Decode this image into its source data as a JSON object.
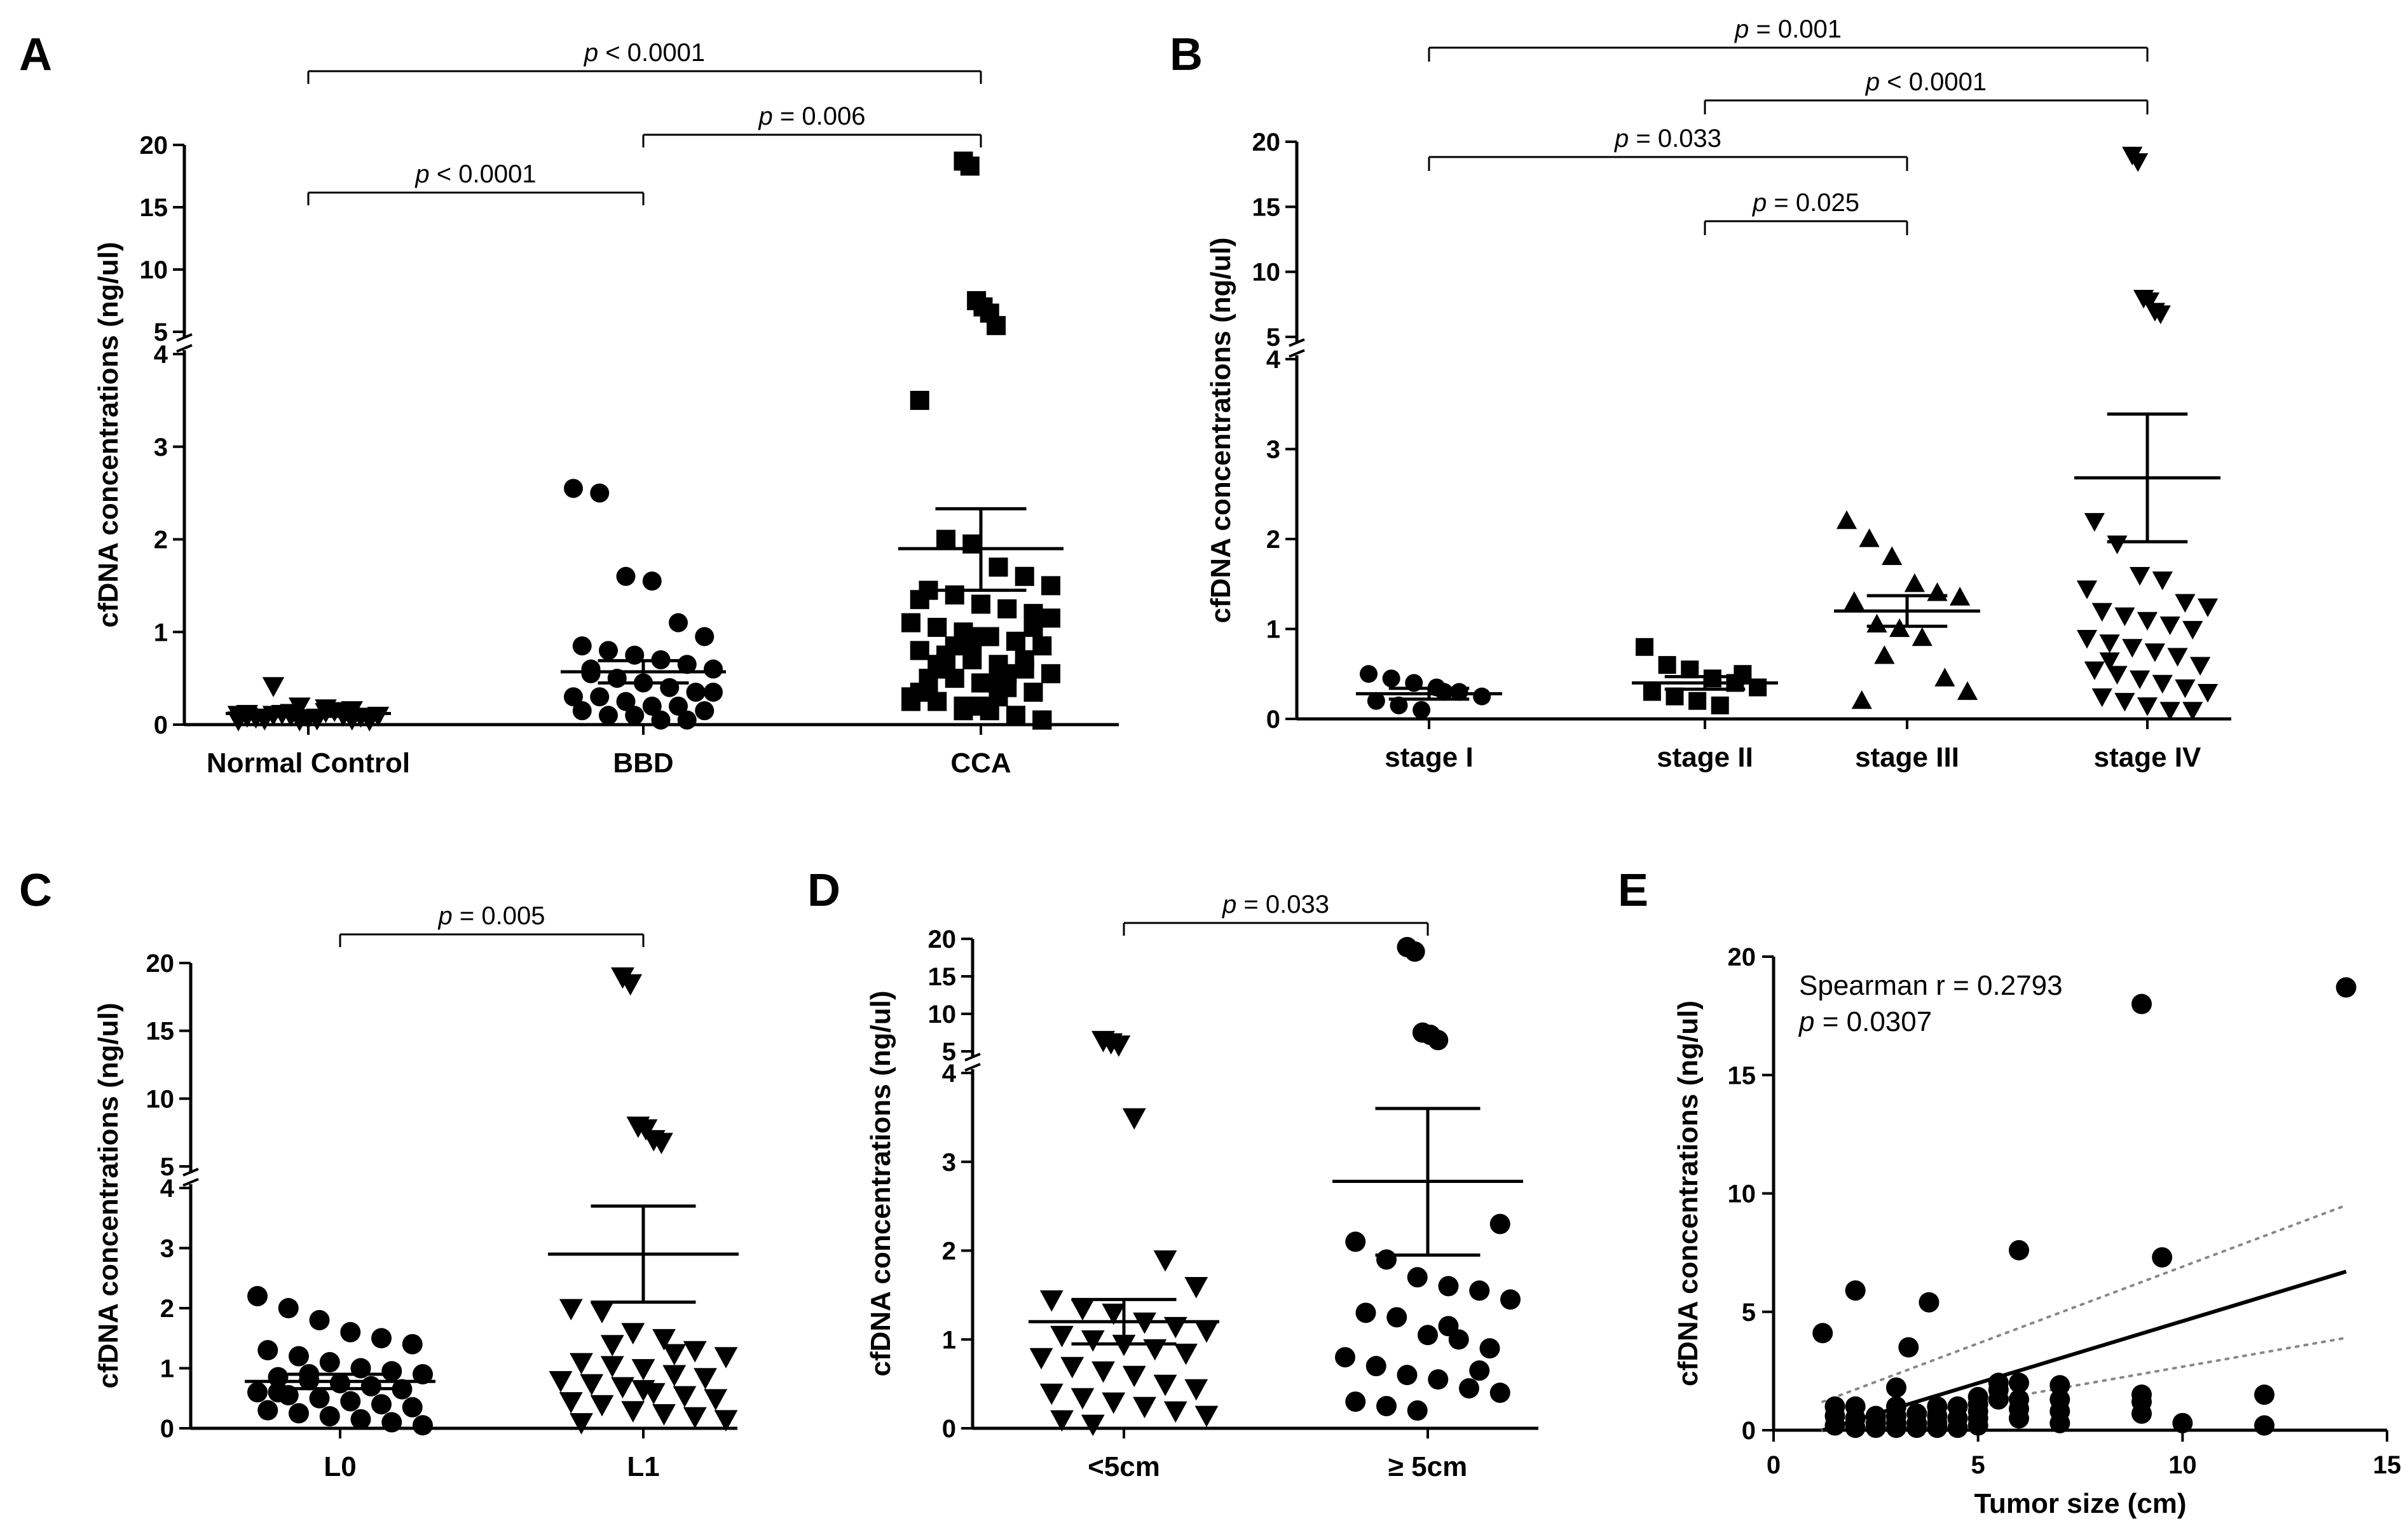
{
  "chart_data": [
    {
      "panel": "A",
      "type": "scatter",
      "ylabel": "cfDNA concentrations (ng/ul)",
      "ylim": [
        0,
        20
      ],
      "y_axis_break": [
        4,
        5
      ],
      "yticks_lower": [
        "0",
        "1",
        "2",
        "3",
        "4"
      ],
      "yticks_upper": [
        "5",
        "10",
        "15",
        "20"
      ],
      "categories": [
        "Normal Control",
        "BBD",
        "CCA"
      ],
      "series": [
        {
          "name": "Normal Control",
          "marker": "triangle-down",
          "mean": 0.12,
          "sem_low": 0.09,
          "sem_high": 0.15,
          "values": [
            0.05,
            0.08,
            0.1,
            0.06,
            0.12,
            0.07,
            0.09,
            0.11,
            0.05,
            0.14,
            0.06,
            0.1,
            0.08,
            0.12,
            0.07,
            0.15,
            0.09,
            0.11,
            0.06,
            0.13,
            0.08,
            0.1,
            0.05,
            0.12,
            0.42,
            0.2,
            0.18,
            0.16
          ]
        },
        {
          "name": "BBD",
          "marker": "circle",
          "mean": 0.57,
          "sem_low": 0.45,
          "sem_high": 0.69,
          "values": [
            2.55,
            2.5,
            1.6,
            1.55,
            1.1,
            0.95,
            0.85,
            0.8,
            0.75,
            0.7,
            0.65,
            0.6,
            0.55,
            0.5,
            0.45,
            0.4,
            0.35,
            0.3,
            0.3,
            0.25,
            0.2,
            0.2,
            0.15,
            0.15,
            0.1,
            0.1,
            0.05,
            0.05,
            0.35,
            0.6
          ]
        },
        {
          "name": "CCA",
          "marker": "square",
          "mean": 1.9,
          "sem_low": 1.45,
          "sem_high": 2.33,
          "values": [
            18.7,
            18.3,
            7.5,
            7.0,
            6.5,
            5.5,
            3.5,
            2.0,
            1.95,
            1.7,
            1.6,
            1.5,
            1.45,
            1.4,
            1.3,
            1.25,
            1.2,
            1.1,
            1.05,
            1.0,
            0.95,
            0.9,
            0.85,
            0.8,
            0.75,
            0.7,
            0.65,
            0.6,
            0.55,
            0.5,
            0.5,
            0.45,
            0.4,
            0.35,
            0.3,
            0.25,
            0.2,
            0.15,
            0.1,
            0.05,
            1.35,
            0.6,
            0.9,
            0.3,
            0.7,
            1.15,
            0.4,
            0.85,
            0.2,
            0.55,
            1.05,
            0.25,
            0.65,
            0.15,
            0.45,
            0.1,
            0.05,
            0.35,
            0.75,
            0.95
          ]
        }
      ],
      "comparisons": [
        {
          "groups": [
            "Normal Control",
            "BBD"
          ],
          "p_label": "p",
          "p_text": " < 0.0001"
        },
        {
          "groups": [
            "BBD",
            "CCA"
          ],
          "p_label": "p",
          "p_text": " = 0.006"
        },
        {
          "groups": [
            "Normal Control",
            "CCA"
          ],
          "p_label": "p",
          "p_text": " < 0.0001"
        }
      ]
    },
    {
      "panel": "B",
      "type": "scatter",
      "ylabel": "cfDNA concentrations (ng/ul)",
      "ylim": [
        0,
        20
      ],
      "y_axis_break": [
        4,
        5
      ],
      "yticks_lower": [
        "0",
        "1",
        "2",
        "3",
        "4"
      ],
      "yticks_upper": [
        "5",
        "10",
        "15",
        "20"
      ],
      "categories": [
        "stage I",
        "stage II",
        "stage III",
        "stage IV"
      ],
      "series": [
        {
          "name": "stage I",
          "marker": "circle",
          "mean": 0.28,
          "sem_low": 0.22,
          "sem_high": 0.34,
          "values": [
            0.5,
            0.45,
            0.4,
            0.35,
            0.3,
            0.25,
            0.2,
            0.15,
            0.1,
            0.3
          ]
        },
        {
          "name": "stage II",
          "marker": "square",
          "mean": 0.4,
          "sem_low": 0.33,
          "sem_high": 0.47,
          "values": [
            0.8,
            0.6,
            0.55,
            0.45,
            0.4,
            0.35,
            0.3,
            0.25,
            0.2,
            0.15,
            0.5
          ]
        },
        {
          "name": "stage III",
          "marker": "triangle-up",
          "mean": 1.2,
          "sem_low": 1.03,
          "sem_high": 1.37,
          "values": [
            2.2,
            2.0,
            1.8,
            1.5,
            1.4,
            1.35,
            1.3,
            1.05,
            1.0,
            0.9,
            0.45,
            0.3,
            0.2,
            0.7
          ]
        },
        {
          "name": "stage IV",
          "marker": "triangle-down",
          "mean": 2.68,
          "sem_low": 1.97,
          "sem_high": 3.39,
          "values": [
            19.0,
            18.5,
            8.0,
            7.8,
            7.0,
            6.8,
            2.2,
            1.95,
            1.6,
            1.55,
            1.3,
            1.25,
            1.2,
            1.15,
            1.1,
            1.05,
            1.0,
            0.9,
            0.85,
            0.8,
            0.75,
            0.7,
            0.6,
            0.55,
            0.5,
            0.45,
            0.4,
            0.35,
            0.3,
            0.25,
            0.2,
            0.15,
            0.1,
            0.1,
            1.45,
            0.65
          ]
        }
      ],
      "comparisons": [
        {
          "groups": [
            "stage II",
            "stage III"
          ],
          "p_label": "p",
          "p_text": " = 0.025"
        },
        {
          "groups": [
            "stage I",
            "stage III"
          ],
          "p_label": "p",
          "p_text": " = 0.033"
        },
        {
          "groups": [
            "stage II",
            "stage IV"
          ],
          "p_label": "p",
          "p_text": " < 0.0001"
        },
        {
          "groups": [
            "stage I",
            "stage IV"
          ],
          "p_label": "p",
          "p_text": " = 0.001"
        }
      ]
    },
    {
      "panel": "C",
      "type": "scatter",
      "ylabel": "cfDNA concentrations (ng/ul)",
      "ylim": [
        0,
        20
      ],
      "y_axis_break": [
        4,
        5
      ],
      "yticks_lower": [
        "0",
        "1",
        "2",
        "3",
        "4"
      ],
      "yticks_upper": [
        "5",
        "10",
        "15",
        "20"
      ],
      "categories": [
        "L0",
        "L1"
      ],
      "series": [
        {
          "name": "L0",
          "marker": "circle",
          "mean": 0.78,
          "sem_low": 0.66,
          "sem_high": 0.9,
          "values": [
            2.2,
            2.0,
            1.8,
            1.6,
            1.5,
            1.4,
            1.3,
            1.2,
            1.1,
            1.0,
            0.95,
            0.9,
            0.85,
            0.8,
            0.75,
            0.7,
            0.65,
            0.6,
            0.55,
            0.5,
            0.45,
            0.4,
            0.35,
            0.3,
            0.25,
            0.2,
            0.15,
            0.1,
            0.05,
            0.6,
            0.9
          ]
        },
        {
          "name": "L1",
          "marker": "triangle-down",
          "mean": 2.9,
          "sem_low": 2.1,
          "sem_high": 3.7,
          "values": [
            19.0,
            18.5,
            8.0,
            7.8,
            7.0,
            6.8,
            2.0,
            1.95,
            1.6,
            1.5,
            1.3,
            1.2,
            1.1,
            1.05,
            1.0,
            0.9,
            0.85,
            0.8,
            0.75,
            0.7,
            0.6,
            0.55,
            0.5,
            0.45,
            0.4,
            0.3,
            0.25,
            0.2,
            0.15,
            0.1,
            1.4,
            0.65,
            1.25
          ]
        }
      ],
      "comparisons": [
        {
          "groups": [
            "L0",
            "L1"
          ],
          "p_label": "p",
          "p_text": " = 0.005"
        }
      ]
    },
    {
      "panel": "D",
      "type": "scatter",
      "ylabel": "cfDNA concentrations (ng/ul)",
      "ylim": [
        0,
        20
      ],
      "y_axis_break": [
        4,
        5
      ],
      "yticks_lower": [
        "0",
        "1",
        "2",
        "3",
        "4"
      ],
      "yticks_upper": [
        "5",
        "10",
        "15",
        "20"
      ],
      "categories": [
        "<5cm",
        "≥ 5cm"
      ],
      "series": [
        {
          "name": "<5cm",
          "marker": "triangle-down",
          "mean": 1.2,
          "sem_low": 0.95,
          "sem_high": 1.45,
          "values": [
            6.5,
            6.2,
            5.9,
            3.5,
            1.9,
            1.6,
            1.45,
            1.35,
            1.3,
            1.2,
            1.15,
            1.1,
            1.05,
            1.0,
            0.95,
            0.9,
            0.85,
            0.8,
            0.7,
            0.65,
            0.6,
            0.5,
            0.45,
            0.4,
            0.35,
            0.3,
            0.25,
            0.2,
            0.15,
            0.1,
            0.05
          ]
        },
        {
          "name": "≥ 5cm",
          "marker": "circle",
          "mean": 2.78,
          "sem_low": 1.95,
          "sem_high": 3.6,
          "values": [
            18.9,
            18.3,
            7.5,
            7.2,
            6.5,
            2.3,
            2.1,
            1.9,
            1.7,
            1.6,
            1.55,
            1.45,
            1.3,
            1.25,
            1.05,
            1.0,
            0.9,
            0.8,
            0.7,
            0.6,
            0.55,
            0.45,
            0.4,
            0.3,
            0.25,
            0.2,
            1.15,
            0.65
          ]
        }
      ],
      "comparisons": [
        {
          "groups": [
            "<5cm",
            "≥ 5cm"
          ],
          "p_label": "p",
          "p_text": " = 0.033"
        }
      ]
    },
    {
      "panel": "E",
      "type": "scatter",
      "xlabel": "Tumor size (cm)",
      "ylabel": "cfDNA concentrations (ng/ul)",
      "xlim": [
        0,
        15
      ],
      "ylim": [
        0,
        20
      ],
      "xticks": [
        "0",
        "5",
        "10",
        "15"
      ],
      "yticks": [
        "0",
        "5",
        "10",
        "15",
        "20"
      ],
      "annotation": {
        "stat": "Spearman r = 0.2793",
        "p_label": "p",
        "p_text": " = 0.0307"
      },
      "regression": {
        "x": [
          1.2,
          14
        ],
        "y": [
          0.0,
          6.7
        ]
      },
      "ci_upper": {
        "x": [
          1.2,
          14
        ],
        "y": [
          1.2,
          9.5
        ]
      },
      "ci_lower": {
        "x": [
          1.2,
          14
        ],
        "y": [
          -0.6,
          3.9
        ]
      },
      "points": [
        [
          1.2,
          4.1
        ],
        [
          2.0,
          5.9
        ],
        [
          3.3,
          3.5
        ],
        [
          3.8,
          5.4
        ],
        [
          6.0,
          7.6
        ],
        [
          9.5,
          7.3
        ],
        [
          9.0,
          18.0
        ],
        [
          14.0,
          18.7
        ],
        [
          1.5,
          1.0
        ],
        [
          1.5,
          0.6
        ],
        [
          1.5,
          0.2
        ],
        [
          2.0,
          1.0
        ],
        [
          2.0,
          0.5
        ],
        [
          2.0,
          0.1
        ],
        [
          2.5,
          0.6
        ],
        [
          2.5,
          0.3
        ],
        [
          2.5,
          0.1
        ],
        [
          3.0,
          1.8
        ],
        [
          3.0,
          1.0
        ],
        [
          3.0,
          0.6
        ],
        [
          3.0,
          0.3
        ],
        [
          3.0,
          0.1
        ],
        [
          3.5,
          0.7
        ],
        [
          3.5,
          0.3
        ],
        [
          3.5,
          0.1
        ],
        [
          4.0,
          1.0
        ],
        [
          4.0,
          0.6
        ],
        [
          4.0,
          0.3
        ],
        [
          4.0,
          0.1
        ],
        [
          4.5,
          1.0
        ],
        [
          4.5,
          0.5
        ],
        [
          4.5,
          0.1
        ],
        [
          5.0,
          1.4
        ],
        [
          5.0,
          1.1
        ],
        [
          5.0,
          0.8
        ],
        [
          5.0,
          0.5
        ],
        [
          5.0,
          0.2
        ],
        [
          5.5,
          2.0
        ],
        [
          5.5,
          1.7
        ],
        [
          5.5,
          1.3
        ],
        [
          6.0,
          2.0
        ],
        [
          6.0,
          1.3
        ],
        [
          6.0,
          0.9
        ],
        [
          6.0,
          0.5
        ],
        [
          7.0,
          1.9
        ],
        [
          7.0,
          1.3
        ],
        [
          7.0,
          0.8
        ],
        [
          7.0,
          0.3
        ],
        [
          9.0,
          1.5
        ],
        [
          9.0,
          1.2
        ],
        [
          9.0,
          0.7
        ],
        [
          10.0,
          0.3
        ],
        [
          12.0,
          1.5
        ],
        [
          12.0,
          0.2
        ]
      ]
    }
  ]
}
